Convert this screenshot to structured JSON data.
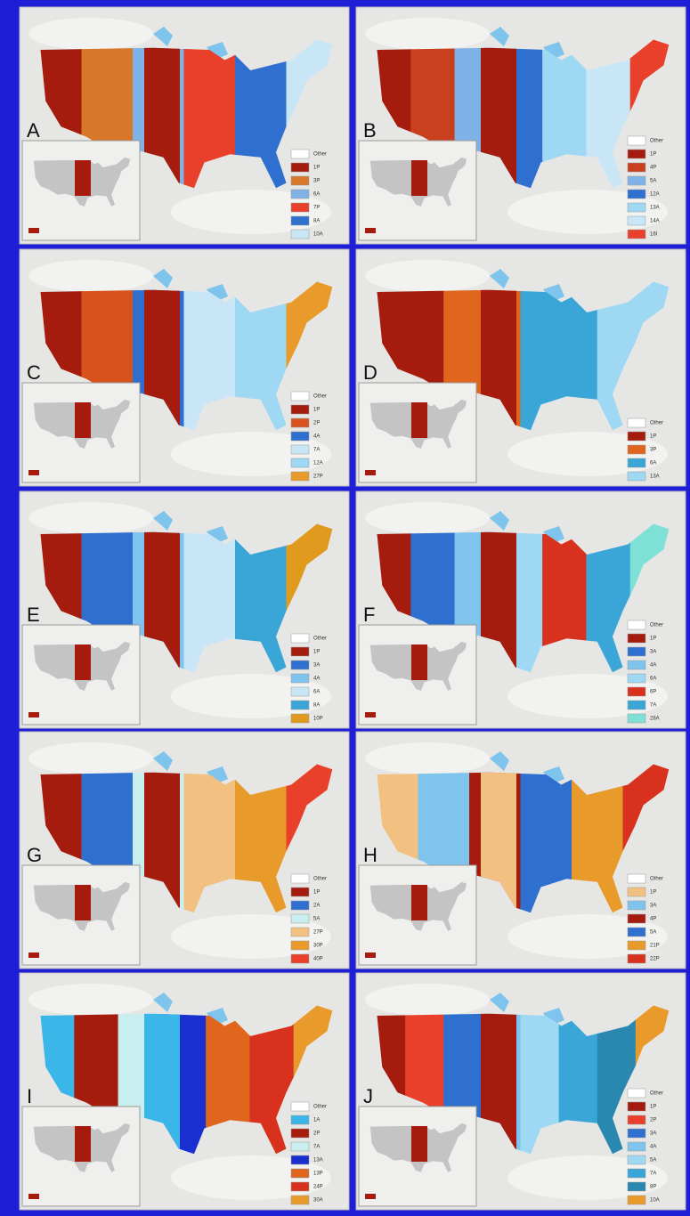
{
  "panels": [
    {
      "letter": "A",
      "legend": [
        {
          "label": "Other",
          "color": "#ffffff"
        },
        {
          "label": "1P",
          "color": "#a51c0e"
        },
        {
          "label": "3P",
          "color": "#d8762a"
        },
        {
          "label": "6A",
          "color": "#7fb2e6"
        },
        {
          "label": "7P",
          "color": "#e8402a"
        },
        {
          "label": "8A",
          "color": "#2f6fd0"
        },
        {
          "label": "10A",
          "color": "#c9e6f7"
        }
      ]
    },
    {
      "letter": "B",
      "legend": [
        {
          "label": "Other",
          "color": "#ffffff"
        },
        {
          "label": "1P",
          "color": "#a51c0e"
        },
        {
          "label": "4P",
          "color": "#c8401e"
        },
        {
          "label": "5A",
          "color": "#7fb2e6"
        },
        {
          "label": "12A",
          "color": "#2f6fd0"
        },
        {
          "label": "13A",
          "color": "#9ed8f2"
        },
        {
          "label": "14A",
          "color": "#c9e6f7"
        },
        {
          "label": "16I",
          "color": "#e8402a"
        }
      ]
    },
    {
      "letter": "C",
      "legend": [
        {
          "label": "Other",
          "color": "#ffffff"
        },
        {
          "label": "1P",
          "color": "#a51c0e"
        },
        {
          "label": "2P",
          "color": "#d8521e"
        },
        {
          "label": "4A",
          "color": "#2f6fd0"
        },
        {
          "label": "7A",
          "color": "#c9e6f7"
        },
        {
          "label": "12A",
          "color": "#9ed8f2"
        },
        {
          "label": "27P",
          "color": "#e89a2a"
        }
      ]
    },
    {
      "letter": "D",
      "legend": [
        {
          "label": "Other",
          "color": "#ffffff"
        },
        {
          "label": "1P",
          "color": "#a51c0e"
        },
        {
          "label": "3P",
          "color": "#e0661e"
        },
        {
          "label": "6A",
          "color": "#3aa6d8"
        },
        {
          "label": "13A",
          "color": "#9ed8f2"
        }
      ]
    },
    {
      "letter": "E",
      "legend": [
        {
          "label": "Other",
          "color": "#ffffff"
        },
        {
          "label": "1P",
          "color": "#a51c0e"
        },
        {
          "label": "3A",
          "color": "#2f6fd0"
        },
        {
          "label": "4A",
          "color": "#7fc4ec"
        },
        {
          "label": "6A",
          "color": "#c9e6f7"
        },
        {
          "label": "8A",
          "color": "#3aa6d8"
        },
        {
          "label": "10P",
          "color": "#e09a1e"
        }
      ]
    },
    {
      "letter": "F",
      "legend": [
        {
          "label": "Other",
          "color": "#ffffff"
        },
        {
          "label": "1P",
          "color": "#a51c0e"
        },
        {
          "label": "3A",
          "color": "#2f6fd0"
        },
        {
          "label": "4A",
          "color": "#7fc4ec"
        },
        {
          "label": "6A",
          "color": "#9ed8f2"
        },
        {
          "label": "6P",
          "color": "#d8321e"
        },
        {
          "label": "7A",
          "color": "#3aa6d8"
        },
        {
          "label": "28A",
          "color": "#7fe0d8"
        }
      ]
    },
    {
      "letter": "G",
      "legend": [
        {
          "label": "Other",
          "color": "#ffffff"
        },
        {
          "label": "1P",
          "color": "#a51c0e"
        },
        {
          "label": "2A",
          "color": "#2f6fd0"
        },
        {
          "label": "5A",
          "color": "#c9eef0"
        },
        {
          "label": "27P",
          "color": "#f2c080"
        },
        {
          "label": "30P",
          "color": "#e89a2a"
        },
        {
          "label": "40P",
          "color": "#e8402a"
        }
      ]
    },
    {
      "letter": "H",
      "legend": [
        {
          "label": "Other",
          "color": "#ffffff"
        },
        {
          "label": "1P",
          "color": "#f2c080"
        },
        {
          "label": "3A",
          "color": "#7fc4ec"
        },
        {
          "label": "4P",
          "color": "#a51c0e"
        },
        {
          "label": "5A",
          "color": "#2f6fd0"
        },
        {
          "label": "21P",
          "color": "#e89a2a"
        },
        {
          "label": "22P",
          "color": "#d8321e"
        }
      ]
    },
    {
      "letter": "I",
      "legend": [
        {
          "label": "Other",
          "color": "#ffffff"
        },
        {
          "label": "1A",
          "color": "#3ab6e8"
        },
        {
          "label": "2P",
          "color": "#a51c0e"
        },
        {
          "label": "7A",
          "color": "#c9eef0"
        },
        {
          "label": "13A",
          "color": "#1a2fd0"
        },
        {
          "label": "13P",
          "color": "#e0661e"
        },
        {
          "label": "24P",
          "color": "#d8321e"
        },
        {
          "label": "30A",
          "color": "#e89a2a"
        }
      ]
    },
    {
      "letter": "J",
      "legend": [
        {
          "label": "Other",
          "color": "#ffffff"
        },
        {
          "label": "1P",
          "color": "#a51c0e"
        },
        {
          "label": "2P",
          "color": "#e8402a"
        },
        {
          "label": "3A",
          "color": "#2f6fd0"
        },
        {
          "label": "4A",
          "color": "#7fc4ec"
        },
        {
          "label": "5A",
          "color": "#9ed8f2"
        },
        {
          "label": "7A",
          "color": "#3aa6d8"
        },
        {
          "label": "8P",
          "color": "#2a88b0"
        },
        {
          "label": "10A",
          "color": "#e89a2a"
        }
      ]
    }
  ]
}
